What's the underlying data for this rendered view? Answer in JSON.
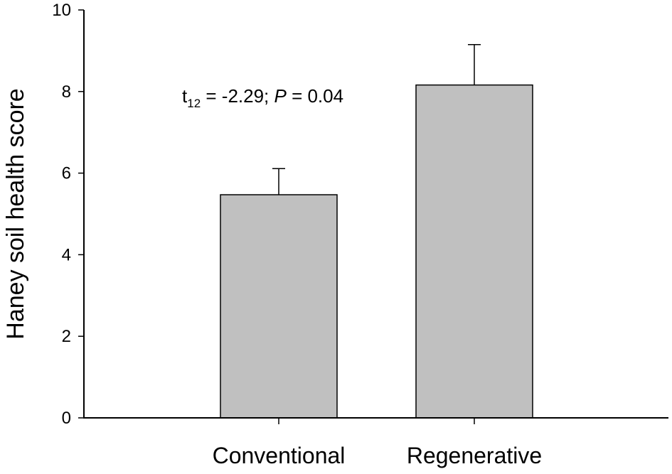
{
  "chart_data": {
    "type": "bar",
    "categories": [
      "Conventional",
      "Regenerative"
    ],
    "values": [
      5.47,
      8.16
    ],
    "error_upper": [
      0.64,
      0.99
    ],
    "ylabel": "Haney soil health score",
    "xlabel": "",
    "ylim": [
      0,
      10
    ],
    "yticks": [
      "0",
      "2",
      "4",
      "6",
      "8",
      "10"
    ],
    "annotation": {
      "stat": "t",
      "subscript": "12",
      "stat_value": " = -2.29; ",
      "p_symbol": "P",
      "p_value": " = 0.04"
    },
    "grid": false,
    "colors": {
      "bar_fill": "#c0c0c0",
      "bar_stroke": "#000000"
    }
  }
}
